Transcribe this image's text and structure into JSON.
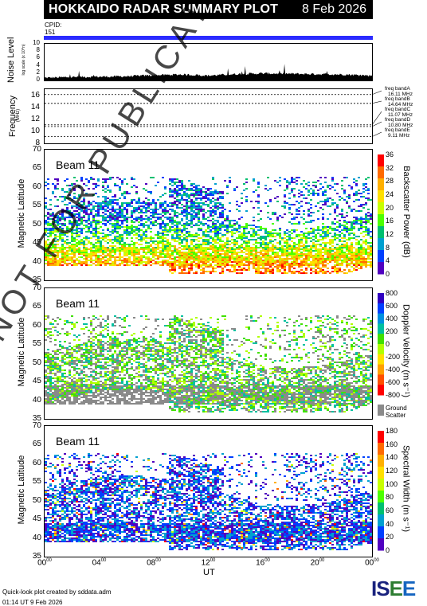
{
  "header": {
    "title": "HOKKAIDO RADAR SUMMARY PLOT",
    "date": "8 Feb 2026"
  },
  "cpid": {
    "label": "CPID:",
    "value": "151"
  },
  "noise_panel": {
    "ylabel": "Noise Level",
    "ylabel_sub": "log scale (x 10^n)",
    "ticks": [
      "0",
      "2",
      "4",
      "6",
      "8",
      "10"
    ]
  },
  "freq_panel": {
    "ylabel": "Frequency",
    "ylabel_sub": "(MHz)",
    "ticks": [
      "8",
      "10",
      "12",
      "14",
      "16"
    ],
    "bands": [
      {
        "name": "freq bandA",
        "value": "16.11 MHz"
      },
      {
        "name": "freq bandB",
        "value": "14.64 MHz"
      },
      {
        "name": "freq bandC",
        "value": "11.07 MHz"
      },
      {
        "name": "freq bandD",
        "value": "10.80 MHz"
      },
      {
        "name": "freq bandE",
        "value": "9.11 MHz"
      }
    ]
  },
  "panels": [
    {
      "beam": "Beam 11",
      "ylabel": "Magnetic Latitude",
      "cbar_title": "Backscatter Power (dB)",
      "cbar_ticks": [
        "36",
        "32",
        "28",
        "24",
        "20",
        "16",
        "12",
        "8",
        "4",
        "0"
      ],
      "cbar_colors": [
        "#ff0000",
        "#ff6a00",
        "#ffb000",
        "#ffe000",
        "#c8ff00",
        "#4cff00",
        "#00c070",
        "#00a0d0",
        "#0040ff",
        "#5000c0"
      ]
    },
    {
      "beam": "Beam 11",
      "ylabel": "Magnetic Latitude",
      "cbar_title": "Doppler Velocity (m s⁻¹)",
      "cbar_ticks": [
        "800",
        "600",
        "400",
        "200",
        "0",
        "-200",
        "-400",
        "-600",
        "-800"
      ],
      "cbar_colors": [
        "#3000c0",
        "#0040ff",
        "#0090e0",
        "#00c0a0",
        "#40e000",
        "#b0ff00",
        "#ffe000",
        "#ffa000",
        "#ff5000",
        "#ff0000"
      ],
      "ground_scatter": "Ground Scatter"
    },
    {
      "beam": "Beam 11",
      "ylabel": "Magnetic Latitude",
      "cbar_title": "Spectral Width (m s⁻¹)",
      "cbar_ticks": [
        "180",
        "160",
        "140",
        "120",
        "100",
        "80",
        "60",
        "40",
        "20",
        "0"
      ],
      "cbar_colors": [
        "#ff0000",
        "#ff6a00",
        "#ffb000",
        "#ffe000",
        "#c8ff00",
        "#4cff00",
        "#00c070",
        "#00a0d0",
        "#0040ff",
        "#5000c0"
      ]
    }
  ],
  "lat_ticks": [
    "70",
    "65",
    "60",
    "55",
    "50",
    "45",
    "40",
    "35"
  ],
  "x_axis": {
    "label": "UT",
    "ticks": [
      "00",
      "04",
      "08",
      "12",
      "16",
      "20",
      "00"
    ],
    "tick_sup": "00"
  },
  "watermark": "NOT FOR PUBLICATION",
  "footer": {
    "line1": "Quick-look plot created by sddata.adm",
    "line2": "01:14 UT  9 Feb 2026"
  },
  "logo": "ISEE",
  "chart_data": [
    {
      "type": "line",
      "title": "Noise Level",
      "ylim": [
        0,
        10
      ],
      "xlabel": "UT",
      "x_range": [
        "00:00",
        "24:00"
      ],
      "x": [
        0,
        2,
        4,
        6,
        8,
        10,
        12,
        14,
        16,
        18,
        20,
        22,
        24
      ],
      "values": [
        0.6,
        0.8,
        0.9,
        1.0,
        1.3,
        1.5,
        1.2,
        1.6,
        1.8,
        1.7,
        1.6,
        1.5,
        1.2
      ]
    },
    {
      "type": "line",
      "title": "Frequency",
      "ylim": [
        8,
        17
      ],
      "ylabel": "Frequency (MHz)",
      "series": [
        {
          "name": "freq bandA",
          "values": [
            16.11
          ]
        },
        {
          "name": "freq bandB",
          "values": [
            14.64
          ]
        },
        {
          "name": "freq bandC",
          "values": [
            11.07
          ]
        },
        {
          "name": "freq bandD",
          "values": [
            10.8
          ]
        },
        {
          "name": "freq bandE",
          "values": [
            9.11
          ]
        }
      ]
    },
    {
      "type": "heatmap",
      "title": "Beam 11",
      "ylabel": "Magnetic Latitude",
      "ylim": [
        35,
        70
      ],
      "xlabel": "UT",
      "x_range": [
        "00:00",
        "24:00"
      ],
      "colorbar": "Backscatter Power (dB)",
      "crange": [
        0,
        36
      ]
    },
    {
      "type": "heatmap",
      "title": "Beam 11",
      "ylabel": "Magnetic Latitude",
      "ylim": [
        35,
        70
      ],
      "xlabel": "UT",
      "x_range": [
        "00:00",
        "24:00"
      ],
      "colorbar": "Doppler Velocity (m s-1)",
      "crange": [
        -800,
        800
      ]
    },
    {
      "type": "heatmap",
      "title": "Beam 11",
      "ylabel": "Magnetic Latitude",
      "ylim": [
        35,
        70
      ],
      "xlabel": "UT",
      "x_range": [
        "00:00",
        "24:00"
      ],
      "colorbar": "Spectral Width (m s-1)",
      "crange": [
        0,
        180
      ]
    }
  ]
}
